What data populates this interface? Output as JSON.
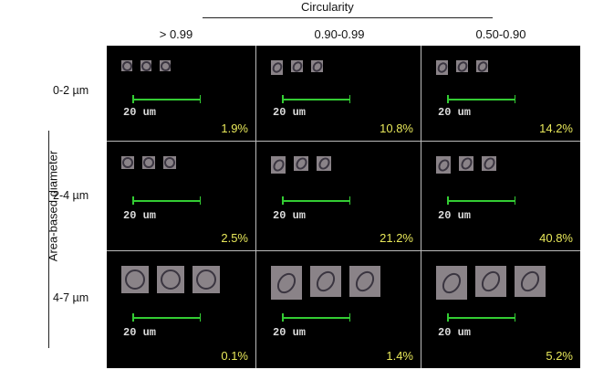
{
  "header": {
    "title": "Circularity",
    "columns": [
      "> 0.99",
      "0.90-0.99",
      "0.50-0.90"
    ]
  },
  "y_axis": {
    "label": "Area-based diameter",
    "rows": [
      "0-2 µm",
      "2-4 µm",
      "4-7 µm"
    ]
  },
  "scale_bar_label": "20 um",
  "colors": {
    "scale_bar": "#33cc33",
    "percent_text": "#e8e85a",
    "background": "#000000"
  },
  "cells": [
    {
      "percent": "1.9%"
    },
    {
      "percent": "10.8%"
    },
    {
      "percent": "14.2%"
    },
    {
      "percent": "2.5%"
    },
    {
      "percent": "21.2%"
    },
    {
      "percent": "40.8%"
    },
    {
      "percent": "0.1%"
    },
    {
      "percent": "1.4%"
    },
    {
      "percent": "5.2%"
    }
  ]
}
